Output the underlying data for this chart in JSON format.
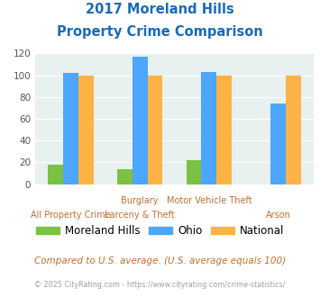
{
  "title_line1": "2017 Moreland Hills",
  "title_line2": "Property Crime Comparison",
  "moreland_hills": [
    18,
    14,
    22,
    0
  ],
  "ohio": [
    102,
    117,
    103,
    74
  ],
  "national": [
    100,
    100,
    100,
    100
  ],
  "bar_colors": {
    "moreland": "#7bc142",
    "ohio": "#4da6ff",
    "national": "#ffb347"
  },
  "ylim": [
    0,
    120
  ],
  "yticks": [
    0,
    20,
    40,
    60,
    80,
    100,
    120
  ],
  "bg_color": "#e8f0f0",
  "legend_labels": [
    "Moreland Hills",
    "Ohio",
    "National"
  ],
  "top_labels": [
    "",
    "Burglary",
    "Motor Vehicle Theft",
    ""
  ],
  "bot_labels": [
    "All Property Crime",
    "Larceny & Theft",
    "",
    "Arson"
  ],
  "footnote1": "Compared to U.S. average. (U.S. average equals 100)",
  "footnote2": "© 2025 CityRating.com - https://www.cityrating.com/crime-statistics/",
  "title_color": "#1a6ab5",
  "footnote1_color": "#c07030",
  "footnote2_color": "#a0a0a0",
  "xlabel_color": "#c07030"
}
